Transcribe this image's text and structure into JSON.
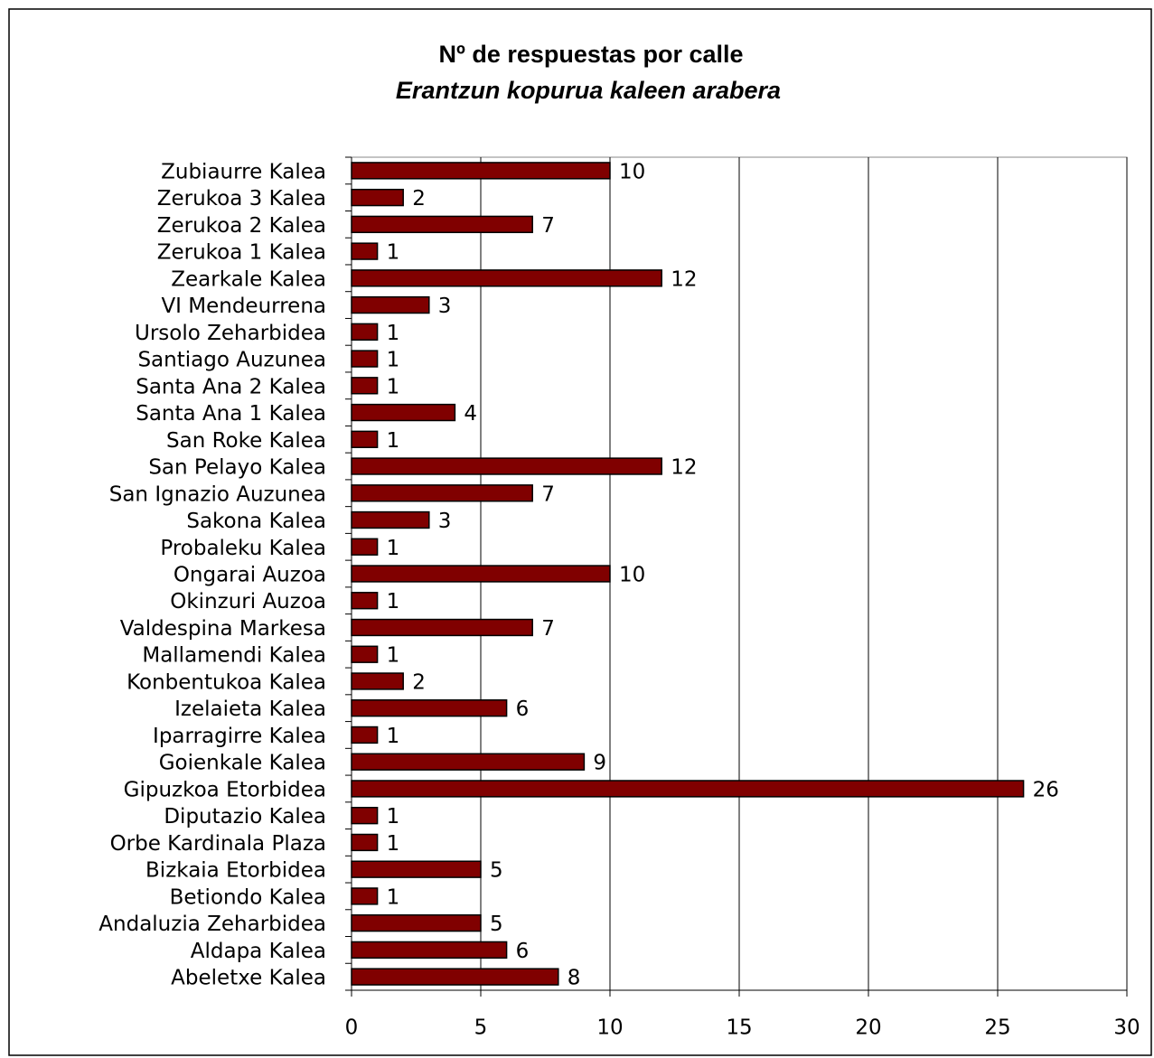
{
  "chart_data": {
    "type": "barh",
    "title": "Nº de respuestas por calle",
    "subtitle": "Erantzun kopurua kaleen arabera",
    "categories": [
      "Zubiaurre Kalea",
      "Zerukoa 3 Kalea",
      "Zerukoa 2 Kalea",
      "Zerukoa 1 Kalea",
      "Zearkale Kalea",
      "VI Mendeurrena",
      "Ursolo Zeharbidea",
      "Santiago Auzunea",
      "Santa Ana 2 Kalea",
      "Santa Ana 1 Kalea",
      "San Roke Kalea",
      "San Pelayo Kalea",
      "San Ignazio Auzunea",
      "Sakona Kalea",
      "Probaleku Kalea",
      "Ongarai Auzoa",
      "Okinzuri Auzoa",
      "Valdespina Markesa",
      "Mallamendi Kalea",
      "Konbentukoa Kalea",
      "Izelaieta Kalea",
      "Iparragirre Kalea",
      "Goienkale Kalea",
      "Gipuzkoa Etorbidea",
      "Diputazio Kalea",
      "Orbe Kardinala Plaza",
      "Bizkaia Etorbidea",
      "Betiondo Kalea",
      "Andaluzia Zeharbidea",
      "Aldapa Kalea",
      "Abeletxe Kalea"
    ],
    "values": [
      10,
      2,
      7,
      1,
      12,
      3,
      1,
      1,
      1,
      4,
      1,
      12,
      7,
      3,
      1,
      10,
      1,
      7,
      1,
      2,
      6,
      1,
      9,
      26,
      1,
      1,
      5,
      1,
      5,
      6,
      8
    ],
    "color": "#800000",
    "xlim": [
      0,
      30
    ],
    "xticks": [
      0,
      5,
      10,
      15,
      20,
      25,
      30
    ],
    "grid": true
  }
}
